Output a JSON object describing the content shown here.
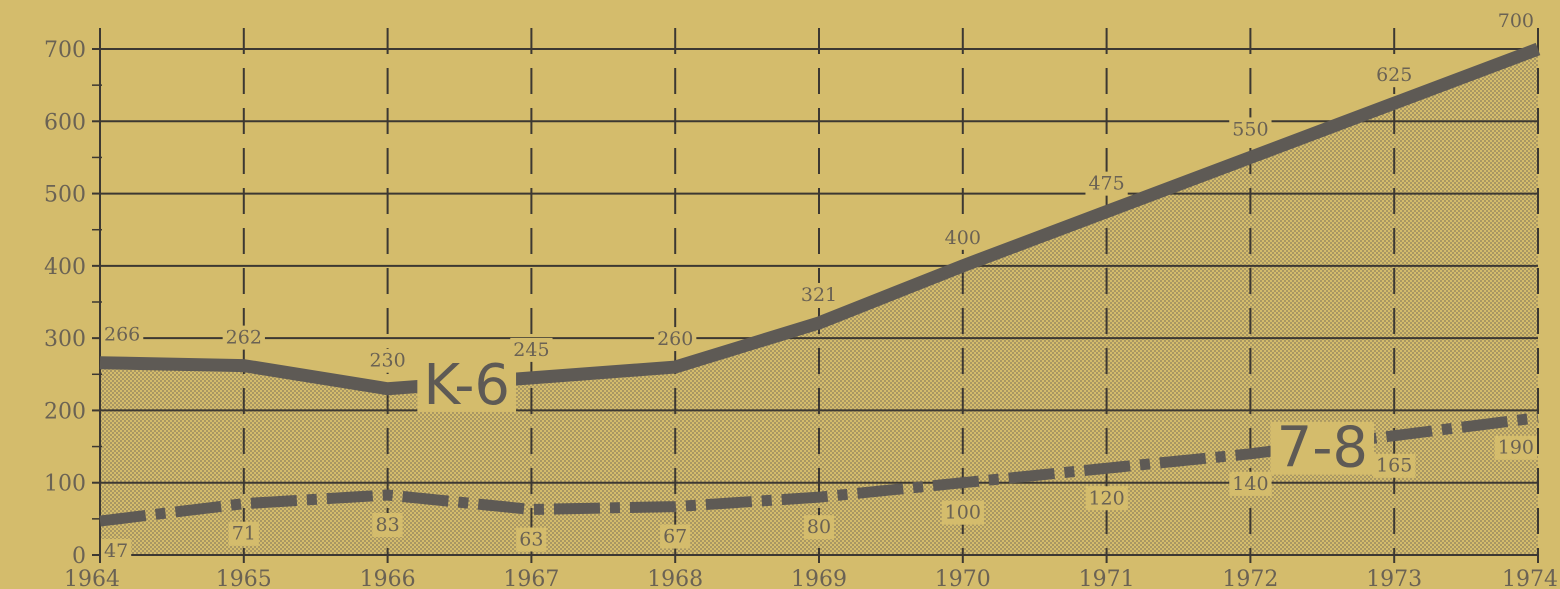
{
  "chart_data": {
    "type": "area",
    "title": "",
    "xlabel": "",
    "ylabel": "",
    "x": [
      1964,
      1965,
      1966,
      1967,
      1968,
      1969,
      1970,
      1971,
      1972,
      1973,
      1974
    ],
    "x_tick_labels": [
      "1964",
      "1965",
      "1966",
      "1967",
      "1968",
      "1969",
      "1970",
      "1971",
      "1972",
      "1973",
      "1974"
    ],
    "y_ticks": [
      0,
      100,
      200,
      300,
      400,
      500,
      600,
      700
    ],
    "y_tick_labels": [
      "0",
      "100",
      "200",
      "300",
      "400",
      "500",
      "600",
      "700"
    ],
    "ylim": [
      0,
      700
    ],
    "grid": true,
    "series": [
      {
        "name": "K-6",
        "style": "solid",
        "values": [
          266,
          262,
          230,
          245,
          260,
          321,
          400,
          475,
          550,
          625,
          700
        ],
        "value_labels": [
          "266",
          "262",
          "230",
          "245",
          "260",
          "321",
          "400",
          "475",
          "550",
          "625",
          "700"
        ]
      },
      {
        "name": "7-8",
        "style": "dash-dot",
        "values": [
          47,
          71,
          83,
          63,
          67,
          80,
          100,
          120,
          140,
          165,
          190
        ],
        "value_labels": [
          "47",
          "71",
          "83",
          "63",
          "67",
          "80",
          "100",
          "120",
          "140",
          "165",
          "190"
        ]
      }
    ],
    "colors": {
      "background": "#d4bc6c",
      "line": "#5e5a55",
      "grid": "#3c3832",
      "text": "#6a6254",
      "fill_dot": "#8a7c5c"
    }
  }
}
